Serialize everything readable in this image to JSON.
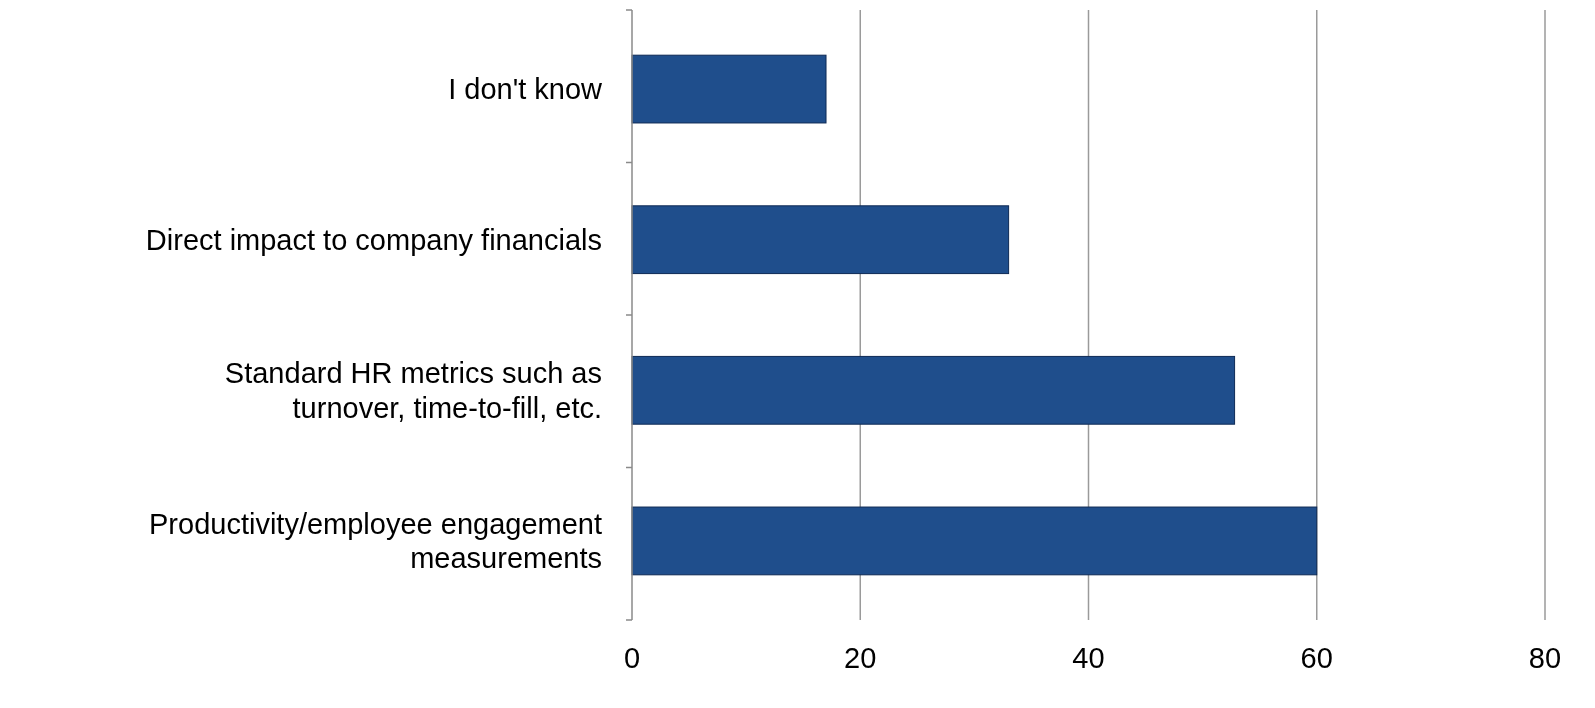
{
  "chart_data": {
    "type": "bar",
    "orientation": "horizontal",
    "categories": [
      "I don't know",
      "Direct impact to company financials",
      "Standard HR metrics such as turnover, time-to-fill, etc.",
      "Productivity/employee engagement measurements"
    ],
    "values": [
      17,
      33,
      52.8,
      60
    ],
    "color": "#1f4e8c",
    "xlim": [
      0,
      80
    ],
    "xticks": [
      0,
      20,
      40,
      60,
      80
    ],
    "grid": "x"
  }
}
